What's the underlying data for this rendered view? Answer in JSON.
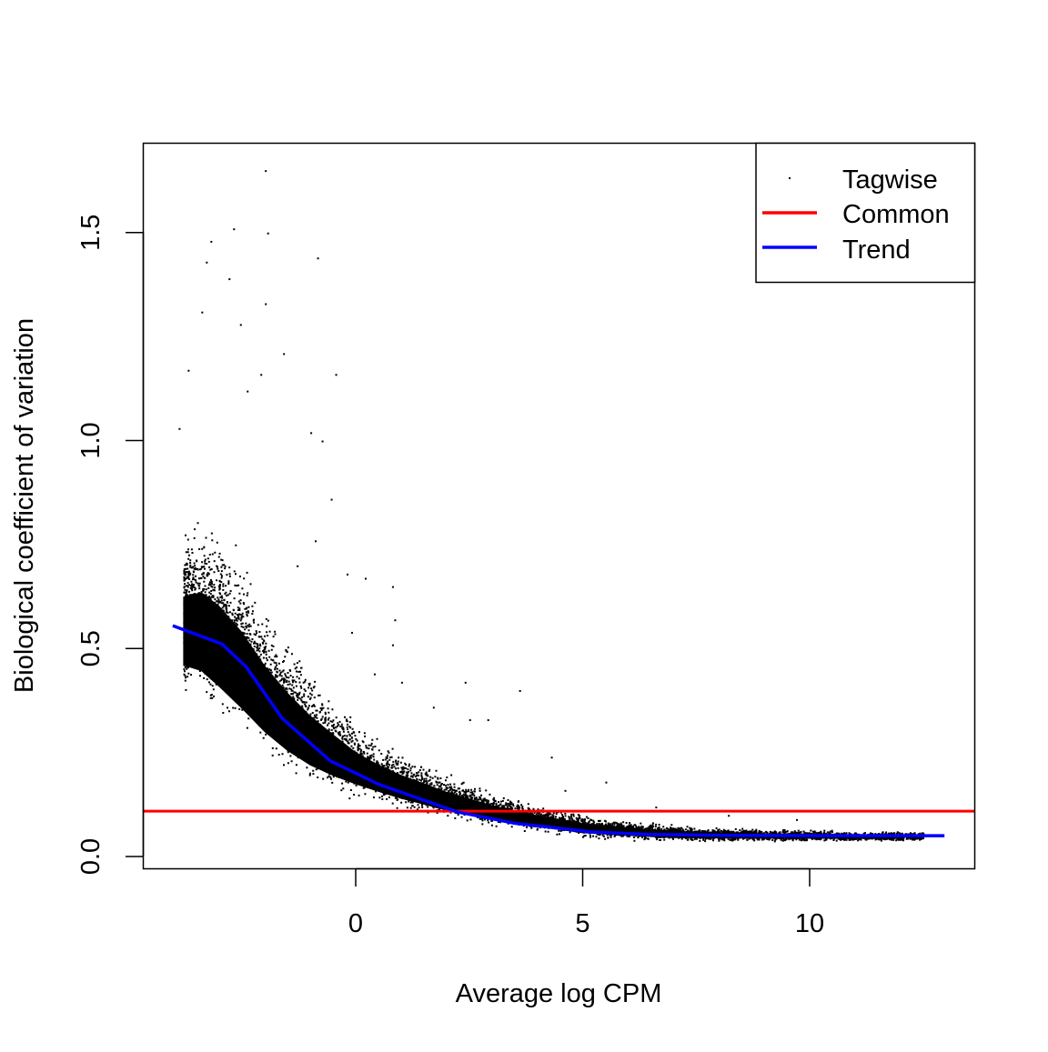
{
  "chart_data": {
    "type": "scatter",
    "title": "",
    "xlabel": "Average log CPM",
    "ylabel": "Biological coefficient of variation",
    "xlim": [
      -4.7,
      13.7
    ],
    "ylim": [
      -0.03,
      1.72
    ],
    "xticks": [
      0,
      5,
      10
    ],
    "yticks": [
      0.0,
      0.5,
      1.0,
      1.5
    ],
    "xtick_labels": [
      "0",
      "5",
      "10"
    ],
    "ytick_labels": [
      "0.0",
      "0.5",
      "1.0",
      "1.5"
    ],
    "grid": false,
    "legend": {
      "placement": "top-right",
      "entries": [
        {
          "label": "Tagwise",
          "kind": "point",
          "color": "#000000"
        },
        {
          "label": "Common",
          "kind": "line",
          "color": "#ff0000"
        },
        {
          "label": "Trend",
          "kind": "line",
          "color": "#0000ff"
        }
      ]
    },
    "series": [
      {
        "name": "Tagwise",
        "kind": "points",
        "color": "#000000",
        "density_band": {
          "x": [
            -3.8,
            -3.4,
            -3.0,
            -2.5,
            -2.0,
            -1.5,
            -1.0,
            -0.5,
            0.0,
            0.5,
            1.0,
            2.0,
            3.0,
            4.0,
            5.0,
            6.0,
            7.0,
            8.0,
            9.0,
            10.0,
            11.0,
            12.0
          ],
          "lower": [
            0.42,
            0.4,
            0.36,
            0.31,
            0.26,
            0.22,
            0.19,
            0.17,
            0.155,
            0.14,
            0.125,
            0.1,
            0.08,
            0.065,
            0.05,
            0.045,
            0.04,
            0.04,
            0.04,
            0.04,
            0.04,
            0.04
          ],
          "upper": [
            0.75,
            0.78,
            0.75,
            0.68,
            0.58,
            0.5,
            0.43,
            0.37,
            0.31,
            0.27,
            0.24,
            0.19,
            0.15,
            0.12,
            0.1,
            0.085,
            0.075,
            0.07,
            0.065,
            0.065,
            0.06,
            0.06
          ]
        },
        "outliers": [
          [
            -2.0,
            1.65
          ],
          [
            -2.7,
            1.51
          ],
          [
            -1.95,
            1.5
          ],
          [
            -3.2,
            1.48
          ],
          [
            -0.85,
            1.44
          ],
          [
            -3.3,
            1.43
          ],
          [
            -2.8,
            1.39
          ],
          [
            -2.0,
            1.33
          ],
          [
            -3.4,
            1.31
          ],
          [
            -2.55,
            1.28
          ],
          [
            -1.6,
            1.21
          ],
          [
            -3.7,
            1.17
          ],
          [
            -2.1,
            1.16
          ],
          [
            -0.45,
            1.16
          ],
          [
            -2.4,
            1.12
          ],
          [
            -1.0,
            1.02
          ],
          [
            -0.75,
            1.0
          ],
          [
            -3.9,
            1.03
          ],
          [
            -0.55,
            0.86
          ],
          [
            -0.9,
            0.76
          ],
          [
            -1.3,
            0.7
          ],
          [
            -0.2,
            0.68
          ],
          [
            0.2,
            0.67
          ],
          [
            0.8,
            0.65
          ],
          [
            0.85,
            0.57
          ],
          [
            -0.1,
            0.54
          ],
          [
            0.8,
            0.51
          ],
          [
            0.4,
            0.44
          ],
          [
            1.0,
            0.42
          ],
          [
            2.4,
            0.42
          ],
          [
            3.6,
            0.4
          ],
          [
            1.7,
            0.36
          ],
          [
            2.5,
            0.33
          ],
          [
            2.9,
            0.33
          ],
          [
            4.3,
            0.24
          ],
          [
            5.5,
            0.18
          ],
          [
            4.6,
            0.16
          ],
          [
            6.6,
            0.12
          ],
          [
            8.2,
            0.1
          ],
          [
            9.7,
            0.09
          ]
        ]
      },
      {
        "name": "Common",
        "kind": "hline",
        "color": "#ff0000",
        "y": 0.109
      },
      {
        "name": "Trend",
        "kind": "line",
        "color": "#0000ff",
        "x": [
          -4.03,
          -2.95,
          -2.42,
          -1.62,
          -0.56,
          0.52,
          2.24,
          3.5,
          5.19,
          6.5,
          8.2,
          10.5,
          12.97
        ],
        "y": [
          0.555,
          0.511,
          0.457,
          0.332,
          0.23,
          0.173,
          0.107,
          0.08,
          0.059,
          0.053,
          0.051,
          0.05,
          0.05
        ]
      }
    ]
  }
}
